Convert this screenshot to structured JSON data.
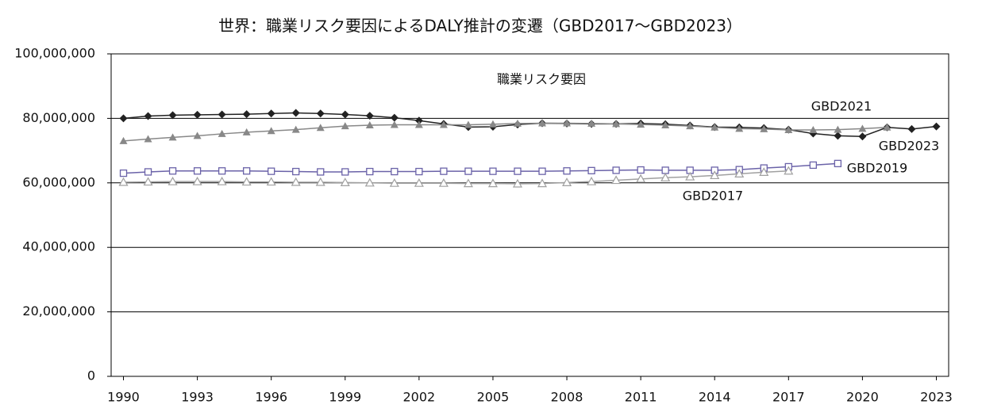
{
  "chart_data": {
    "type": "line",
    "title": "世界：職業リスク要因によるDALY推計の変遷（GBD2017～GBD2023）",
    "subtitle": "職業リスク要因",
    "xlim": [
      1989.5,
      2023.5
    ],
    "xticks": [
      1990,
      1993,
      1996,
      1999,
      2002,
      2005,
      2008,
      2011,
      2014,
      2017,
      2020,
      2023
    ],
    "ylim": [
      0,
      100000000
    ],
    "yticks": [
      0,
      {
        "value": 20000000,
        "label": "20,000,000"
      },
      {
        "value": 40000000,
        "label": "40,000,000"
      },
      {
        "value": 60000000,
        "label": "60,000,000"
      },
      {
        "value": 80000000,
        "label": "80,000,000"
      },
      {
        "value": 100000000,
        "label": "100,000,000"
      }
    ],
    "grid": true,
    "series": [
      {
        "name": "GBD2023",
        "color": "#222222",
        "marker": "diamond",
        "x": [
          1990,
          1991,
          1992,
          1993,
          1994,
          1995,
          1996,
          1997,
          1998,
          1999,
          2000,
          2001,
          2002,
          2003,
          2004,
          2005,
          2006,
          2007,
          2008,
          2009,
          2010,
          2011,
          2012,
          2013,
          2014,
          2015,
          2016,
          2017,
          2018,
          2019,
          2020,
          2021,
          2022,
          2023
        ],
        "values": [
          80000000,
          80700000,
          81000000,
          81100000,
          81200000,
          81300000,
          81500000,
          81700000,
          81500000,
          81200000,
          80800000,
          80200000,
          79300000,
          78300000,
          77300000,
          77400000,
          78100000,
          78500000,
          78400000,
          78300000,
          78300000,
          78400000,
          78200000,
          77800000,
          77300000,
          77200000,
          77000000,
          76500000,
          75300000,
          74600000,
          74400000,
          77200000,
          76700000,
          77500000
        ]
      },
      {
        "name": "GBD2021",
        "color": "#888888",
        "marker": "triangle",
        "x": [
          1990,
          1991,
          1992,
          1993,
          1994,
          1995,
          1996,
          1997,
          1998,
          1999,
          2000,
          2001,
          2002,
          2003,
          2004,
          2005,
          2006,
          2007,
          2008,
          2009,
          2010,
          2011,
          2012,
          2013,
          2014,
          2015,
          2016,
          2017,
          2018,
          2019,
          2020,
          2021
        ],
        "values": [
          73000000,
          73600000,
          74100000,
          74600000,
          75200000,
          75700000,
          76100000,
          76500000,
          77100000,
          77600000,
          77900000,
          78000000,
          78000000,
          78000000,
          78000000,
          78200000,
          78400000,
          78500000,
          78500000,
          78400000,
          78300000,
          78100000,
          77900000,
          77600000,
          77200000,
          76800000,
          76700000,
          76400000,
          76400000,
          76500000,
          76800000,
          77200000
        ]
      },
      {
        "name": "GBD2019",
        "color": "#6a62a8",
        "marker": "square",
        "x": [
          1990,
          1991,
          1992,
          1993,
          1994,
          1995,
          1996,
          1997,
          1998,
          1999,
          2000,
          2001,
          2002,
          2003,
          2004,
          2005,
          2006,
          2007,
          2008,
          2009,
          2010,
          2011,
          2012,
          2013,
          2014,
          2015,
          2016,
          2017,
          2018,
          2019
        ],
        "values": [
          63000000,
          63400000,
          63700000,
          63700000,
          63700000,
          63700000,
          63600000,
          63500000,
          63400000,
          63400000,
          63500000,
          63500000,
          63500000,
          63600000,
          63600000,
          63600000,
          63600000,
          63600000,
          63700000,
          63800000,
          63900000,
          64000000,
          63900000,
          63900000,
          63900000,
          64100000,
          64600000,
          65000000,
          65500000,
          66000000
        ]
      },
      {
        "name": "GBD2017",
        "color": "#a0a0a0",
        "marker": "open-triangle",
        "x": [
          1990,
          1991,
          1992,
          1993,
          1994,
          1995,
          1996,
          1997,
          1998,
          1999,
          2000,
          2001,
          2002,
          2003,
          2004,
          2005,
          2006,
          2007,
          2008,
          2009,
          2010,
          2011,
          2012,
          2013,
          2014,
          2015,
          2016,
          2017
        ],
        "values": [
          60200000,
          60300000,
          60400000,
          60400000,
          60400000,
          60300000,
          60300000,
          60200000,
          60200000,
          60100000,
          60000000,
          59900000,
          59900000,
          59900000,
          59800000,
          59800000,
          59700000,
          59800000,
          60100000,
          60400000,
          60800000,
          61200000,
          61600000,
          61900000,
          62300000,
          62800000,
          63300000,
          63700000
        ]
      }
    ]
  }
}
